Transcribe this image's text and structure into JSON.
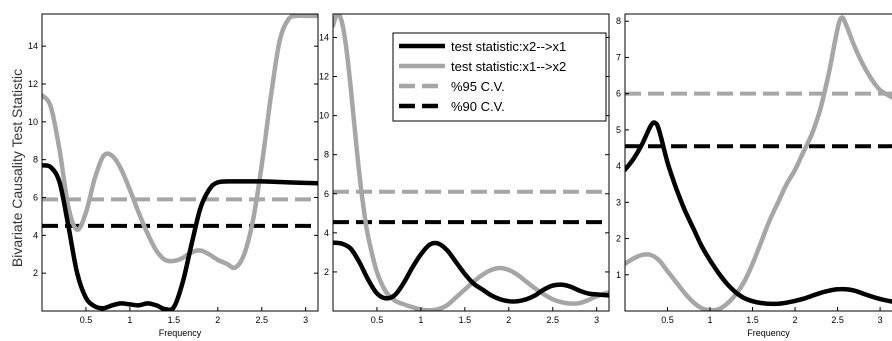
{
  "figure": {
    "ylabel": "Bivariate Causality Test Statistic"
  },
  "legend": {
    "entries": [
      {
        "label": "test statistic:x2-->x1",
        "color": "#000000",
        "dash": false
      },
      {
        "label": "test statistic:x1-->x2",
        "color": "#a6a6a6",
        "dash": false
      },
      {
        "label": "%95 C.V.",
        "color": "#a6a6a6",
        "dash": true
      },
      {
        "label": "%90 C.V.",
        "color": "#000000",
        "dash": true
      }
    ]
  },
  "chart_data": [
    {
      "type": "line",
      "xlabel": "Frequency",
      "ylabel": "Bivariate Causality Test Statistic",
      "xlim": [
        0,
        3.14
      ],
      "ylim": [
        0,
        15.7
      ],
      "xticks": [
        0.5,
        1,
        1.5,
        2,
        2.5,
        3
      ],
      "yticks": [
        2,
        4,
        6,
        8,
        10,
        12,
        14
      ],
      "series": [
        {
          "name": "test statistic:x2-->x1",
          "color": "#000000",
          "x": [
            0,
            0.1,
            0.2,
            0.3,
            0.4,
            0.5,
            0.6,
            0.7,
            0.8,
            0.9,
            1.0,
            1.1,
            1.2,
            1.3,
            1.4,
            1.5,
            1.6,
            1.7,
            1.8,
            1.9,
            2.0,
            2.2,
            2.5,
            2.8,
            3.14
          ],
          "y": [
            7.7,
            7.6,
            6.8,
            4.5,
            2.0,
            0.7,
            0.25,
            0.15,
            0.3,
            0.4,
            0.35,
            0.3,
            0.4,
            0.3,
            0.1,
            0.2,
            1.5,
            3.5,
            5.4,
            6.4,
            6.8,
            6.85,
            6.85,
            6.8,
            6.75
          ]
        },
        {
          "name": "test statistic:x1-->x2",
          "color": "#a6a6a6",
          "x": [
            0,
            0.1,
            0.2,
            0.3,
            0.4,
            0.5,
            0.6,
            0.7,
            0.8,
            0.9,
            1.0,
            1.1,
            1.2,
            1.3,
            1.4,
            1.5,
            1.6,
            1.7,
            1.8,
            1.9,
            2.0,
            2.1,
            2.2,
            2.3,
            2.4,
            2.5,
            2.6,
            2.7,
            2.8,
            2.9,
            3.0,
            3.14
          ],
          "y": [
            11.4,
            10.8,
            8.5,
            5.5,
            4.3,
            5.2,
            7.0,
            8.2,
            8.2,
            7.5,
            6.4,
            5.2,
            4.1,
            3.2,
            2.7,
            2.65,
            2.8,
            3.1,
            3.2,
            3.0,
            2.7,
            2.5,
            2.3,
            3.0,
            4.8,
            7.7,
            11.2,
            14.2,
            15.4,
            15.6,
            15.6,
            15.6
          ]
        },
        {
          "name": "%95 C.V.",
          "color": "#a6a6a6",
          "dashed": true,
          "x": [
            0,
            3.14
          ],
          "y": [
            5.9,
            5.9
          ]
        },
        {
          "name": "%90 C.V.",
          "color": "#000000",
          "dashed": true,
          "x": [
            0,
            3.14
          ],
          "y": [
            4.5,
            4.5
          ]
        }
      ]
    },
    {
      "type": "line",
      "xlabel": "",
      "ylabel": "",
      "xlim": [
        0,
        3.14
      ],
      "ylim": [
        0,
        15.2
      ],
      "xticks": [
        0.5,
        1,
        1.5,
        2,
        2.5,
        3
      ],
      "yticks": [
        2,
        4,
        6,
        8,
        10,
        12,
        14
      ],
      "series": [
        {
          "name": "test statistic:x2-->x1",
          "color": "#000000",
          "x": [
            0,
            0.1,
            0.2,
            0.3,
            0.4,
            0.5,
            0.6,
            0.7,
            0.8,
            0.9,
            1.0,
            1.1,
            1.2,
            1.3,
            1.4,
            1.5,
            1.6,
            1.7,
            1.8,
            1.9,
            2.0,
            2.1,
            2.2,
            2.3,
            2.4,
            2.5,
            2.6,
            2.7,
            2.8,
            2.9,
            3.0,
            3.14
          ],
          "y": [
            3.5,
            3.45,
            3.2,
            2.5,
            1.6,
            0.9,
            0.65,
            0.8,
            1.4,
            2.2,
            2.9,
            3.4,
            3.45,
            3.1,
            2.5,
            1.9,
            1.4,
            1.1,
            0.8,
            0.6,
            0.5,
            0.5,
            0.6,
            0.8,
            1.1,
            1.3,
            1.35,
            1.25,
            1.05,
            0.9,
            0.85,
            0.8
          ]
        },
        {
          "name": "test statistic:x1-->x2",
          "color": "#a6a6a6",
          "x": [
            0,
            0.05,
            0.1,
            0.15,
            0.2,
            0.25,
            0.3,
            0.35,
            0.4,
            0.5,
            0.6,
            0.7,
            0.8,
            0.9,
            1.0,
            1.1,
            1.2,
            1.3,
            1.4,
            1.5,
            1.6,
            1.7,
            1.8,
            1.9,
            2.0,
            2.1,
            2.2,
            2.3,
            2.4,
            2.5,
            2.6,
            2.7,
            2.8,
            2.9,
            3.0,
            3.14
          ],
          "y": [
            14.6,
            15.2,
            14.8,
            13.5,
            11.5,
            9.2,
            7.0,
            5.2,
            3.8,
            2.0,
            1.0,
            0.55,
            0.35,
            0.2,
            0.08,
            0.04,
            0.1,
            0.3,
            0.7,
            1.1,
            1.5,
            1.85,
            2.1,
            2.2,
            2.1,
            1.85,
            1.5,
            1.15,
            0.85,
            0.6,
            0.45,
            0.38,
            0.4,
            0.55,
            0.75,
            0.95
          ]
        },
        {
          "name": "%95 C.V.",
          "color": "#a6a6a6",
          "dashed": true,
          "x": [
            0,
            3.14
          ],
          "y": [
            6.1,
            6.1
          ]
        },
        {
          "name": "%90 C.V.",
          "color": "#000000",
          "dashed": true,
          "x": [
            0,
            3.14
          ],
          "y": [
            4.55,
            4.55
          ]
        }
      ]
    },
    {
      "type": "line",
      "xlabel": "Frequency",
      "ylabel": "",
      "xlim": [
        0,
        3.14
      ],
      "ylim": [
        0,
        8.2
      ],
      "xticks": [
        0.5,
        1,
        1.5,
        2,
        2.5,
        3
      ],
      "yticks": [
        1,
        2,
        3,
        4,
        5,
        6,
        7,
        8
      ],
      "series": [
        {
          "name": "test statistic:x2-->x1",
          "color": "#000000",
          "x": [
            0,
            0.1,
            0.2,
            0.3,
            0.35,
            0.4,
            0.5,
            0.6,
            0.7,
            0.8,
            0.9,
            1.0,
            1.1,
            1.2,
            1.3,
            1.4,
            1.5,
            1.6,
            1.7,
            1.8,
            1.9,
            2.0,
            2.1,
            2.2,
            2.3,
            2.4,
            2.5,
            2.6,
            2.7,
            2.8,
            2.9,
            3.0,
            3.14
          ],
          "y": [
            3.9,
            4.2,
            4.6,
            5.1,
            5.2,
            5.0,
            4.1,
            3.4,
            2.8,
            2.3,
            1.8,
            1.4,
            1.05,
            0.75,
            0.52,
            0.36,
            0.27,
            0.22,
            0.2,
            0.2,
            0.23,
            0.28,
            0.34,
            0.42,
            0.5,
            0.56,
            0.6,
            0.6,
            0.56,
            0.48,
            0.4,
            0.33,
            0.26
          ]
        },
        {
          "name": "test statistic:x1-->x2",
          "color": "#a6a6a6",
          "x": [
            0,
            0.1,
            0.2,
            0.3,
            0.4,
            0.5,
            0.6,
            0.7,
            0.8,
            0.9,
            1.0,
            1.1,
            1.2,
            1.3,
            1.4,
            1.5,
            1.6,
            1.7,
            1.8,
            1.9,
            2.0,
            2.1,
            2.2,
            2.3,
            2.4,
            2.5,
            2.55,
            2.6,
            2.7,
            2.8,
            2.9,
            3.0,
            3.14
          ],
          "y": [
            1.3,
            1.45,
            1.55,
            1.55,
            1.4,
            1.1,
            0.8,
            0.5,
            0.25,
            0.08,
            0.02,
            0.05,
            0.2,
            0.45,
            0.8,
            1.3,
            1.9,
            2.5,
            3.0,
            3.5,
            3.9,
            4.4,
            4.9,
            5.6,
            6.6,
            7.8,
            8.1,
            7.9,
            7.3,
            6.8,
            6.4,
            6.1,
            5.9
          ]
        },
        {
          "name": "%95 C.V.",
          "color": "#a6a6a6",
          "dashed": true,
          "x": [
            0,
            3.14
          ],
          "y": [
            6.0,
            6.0
          ]
        },
        {
          "name": "%90 C.V.",
          "color": "#000000",
          "dashed": true,
          "x": [
            0,
            3.14
          ],
          "y": [
            4.55,
            4.55
          ]
        }
      ]
    }
  ]
}
